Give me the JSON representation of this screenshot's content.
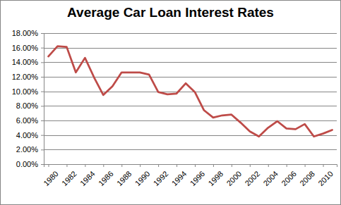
{
  "chart_data": {
    "type": "line",
    "title": "Average Car Loan Interest Rates",
    "x": [
      1980,
      1981,
      1982,
      1983,
      1984,
      1985,
      1986,
      1987,
      1988,
      1989,
      1990,
      1991,
      1992,
      1993,
      1994,
      1995,
      1996,
      1997,
      1998,
      1999,
      2000,
      2001,
      2002,
      2003,
      2004,
      2005,
      2006,
      2007,
      2008,
      2009,
      2010,
      2011
    ],
    "values": [
      14.8,
      16.2,
      16.1,
      12.6,
      14.6,
      11.9,
      9.5,
      10.7,
      12.6,
      12.6,
      12.6,
      12.3,
      9.9,
      9.6,
      9.7,
      11.1,
      9.9,
      7.4,
      6.4,
      6.7,
      6.8,
      5.7,
      4.5,
      3.8,
      5.0,
      5.9,
      4.9,
      4.8,
      5.5,
      3.8,
      4.2,
      4.7
    ],
    "color": "#be4b48",
    "xlim": [
      1979.5,
      2011.5
    ],
    "xticks": [
      1980,
      1982,
      1984,
      1986,
      1988,
      1990,
      1992,
      1994,
      1996,
      1998,
      2000,
      2002,
      2004,
      2006,
      2008,
      2010
    ],
    "ylim": [
      0,
      18
    ],
    "yticks": [
      {
        "value": 0,
        "label": "0.00%"
      },
      {
        "value": 2,
        "label": "2.00%"
      },
      {
        "value": 4,
        "label": "4.00%"
      },
      {
        "value": 6,
        "label": "6.00%"
      },
      {
        "value": 8,
        "label": "8.00%"
      },
      {
        "value": 10,
        "label": "10.00%"
      },
      {
        "value": 12,
        "label": "12.00%"
      },
      {
        "value": 14,
        "label": "14.00%"
      },
      {
        "value": 16,
        "label": "16.00%"
      },
      {
        "value": 18,
        "label": "18.00%"
      }
    ],
    "grid": true
  }
}
